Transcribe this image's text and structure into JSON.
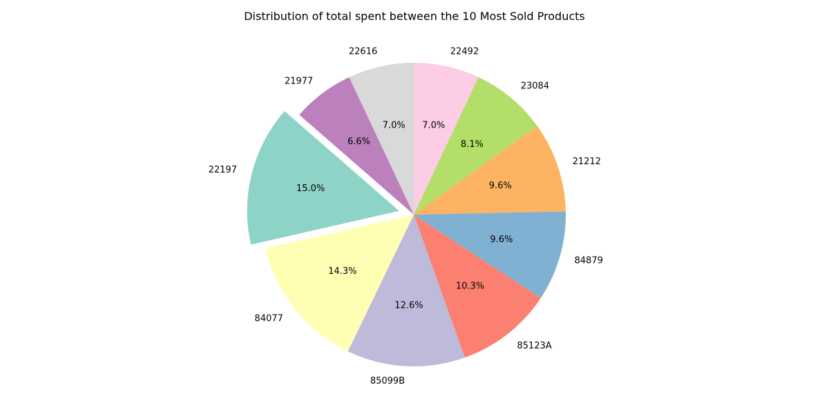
{
  "chart_data": {
    "type": "pie",
    "title": "Distribution of total spent between the 10 Most Sold Products",
    "start_angle_deg": 90,
    "direction": "clockwise",
    "slices": [
      {
        "label": "22492",
        "value": 7.0,
        "pct_label": "7.0%",
        "color": "#fccde5",
        "explode": false
      },
      {
        "label": "23084",
        "value": 8.1,
        "pct_label": "8.1%",
        "color": "#b3de69",
        "explode": false
      },
      {
        "label": "21212",
        "value": 9.6,
        "pct_label": "9.6%",
        "color": "#fdb462",
        "explode": false
      },
      {
        "label": "84879",
        "value": 9.6,
        "pct_label": "9.6%",
        "color": "#80b1d3",
        "explode": false
      },
      {
        "label": "85123A",
        "value": 10.3,
        "pct_label": "10.3%",
        "color": "#fb8072",
        "explode": false
      },
      {
        "label": "85099B",
        "value": 12.6,
        "pct_label": "12.6%",
        "color": "#bebada",
        "explode": false
      },
      {
        "label": "84077",
        "value": 14.3,
        "pct_label": "14.3%",
        "color": "#ffffb3",
        "explode": false
      },
      {
        "label": "22197",
        "value": 15.0,
        "pct_label": "15.0%",
        "color": "#8dd3c7",
        "explode": true
      },
      {
        "label": "21977",
        "value": 6.6,
        "pct_label": "6.6%",
        "color": "#bc80bd",
        "explode": false
      },
      {
        "label": "22616",
        "value": 7.0,
        "pct_label": "7.0%",
        "color": "#d9d9d9",
        "explode": false
      }
    ]
  }
}
